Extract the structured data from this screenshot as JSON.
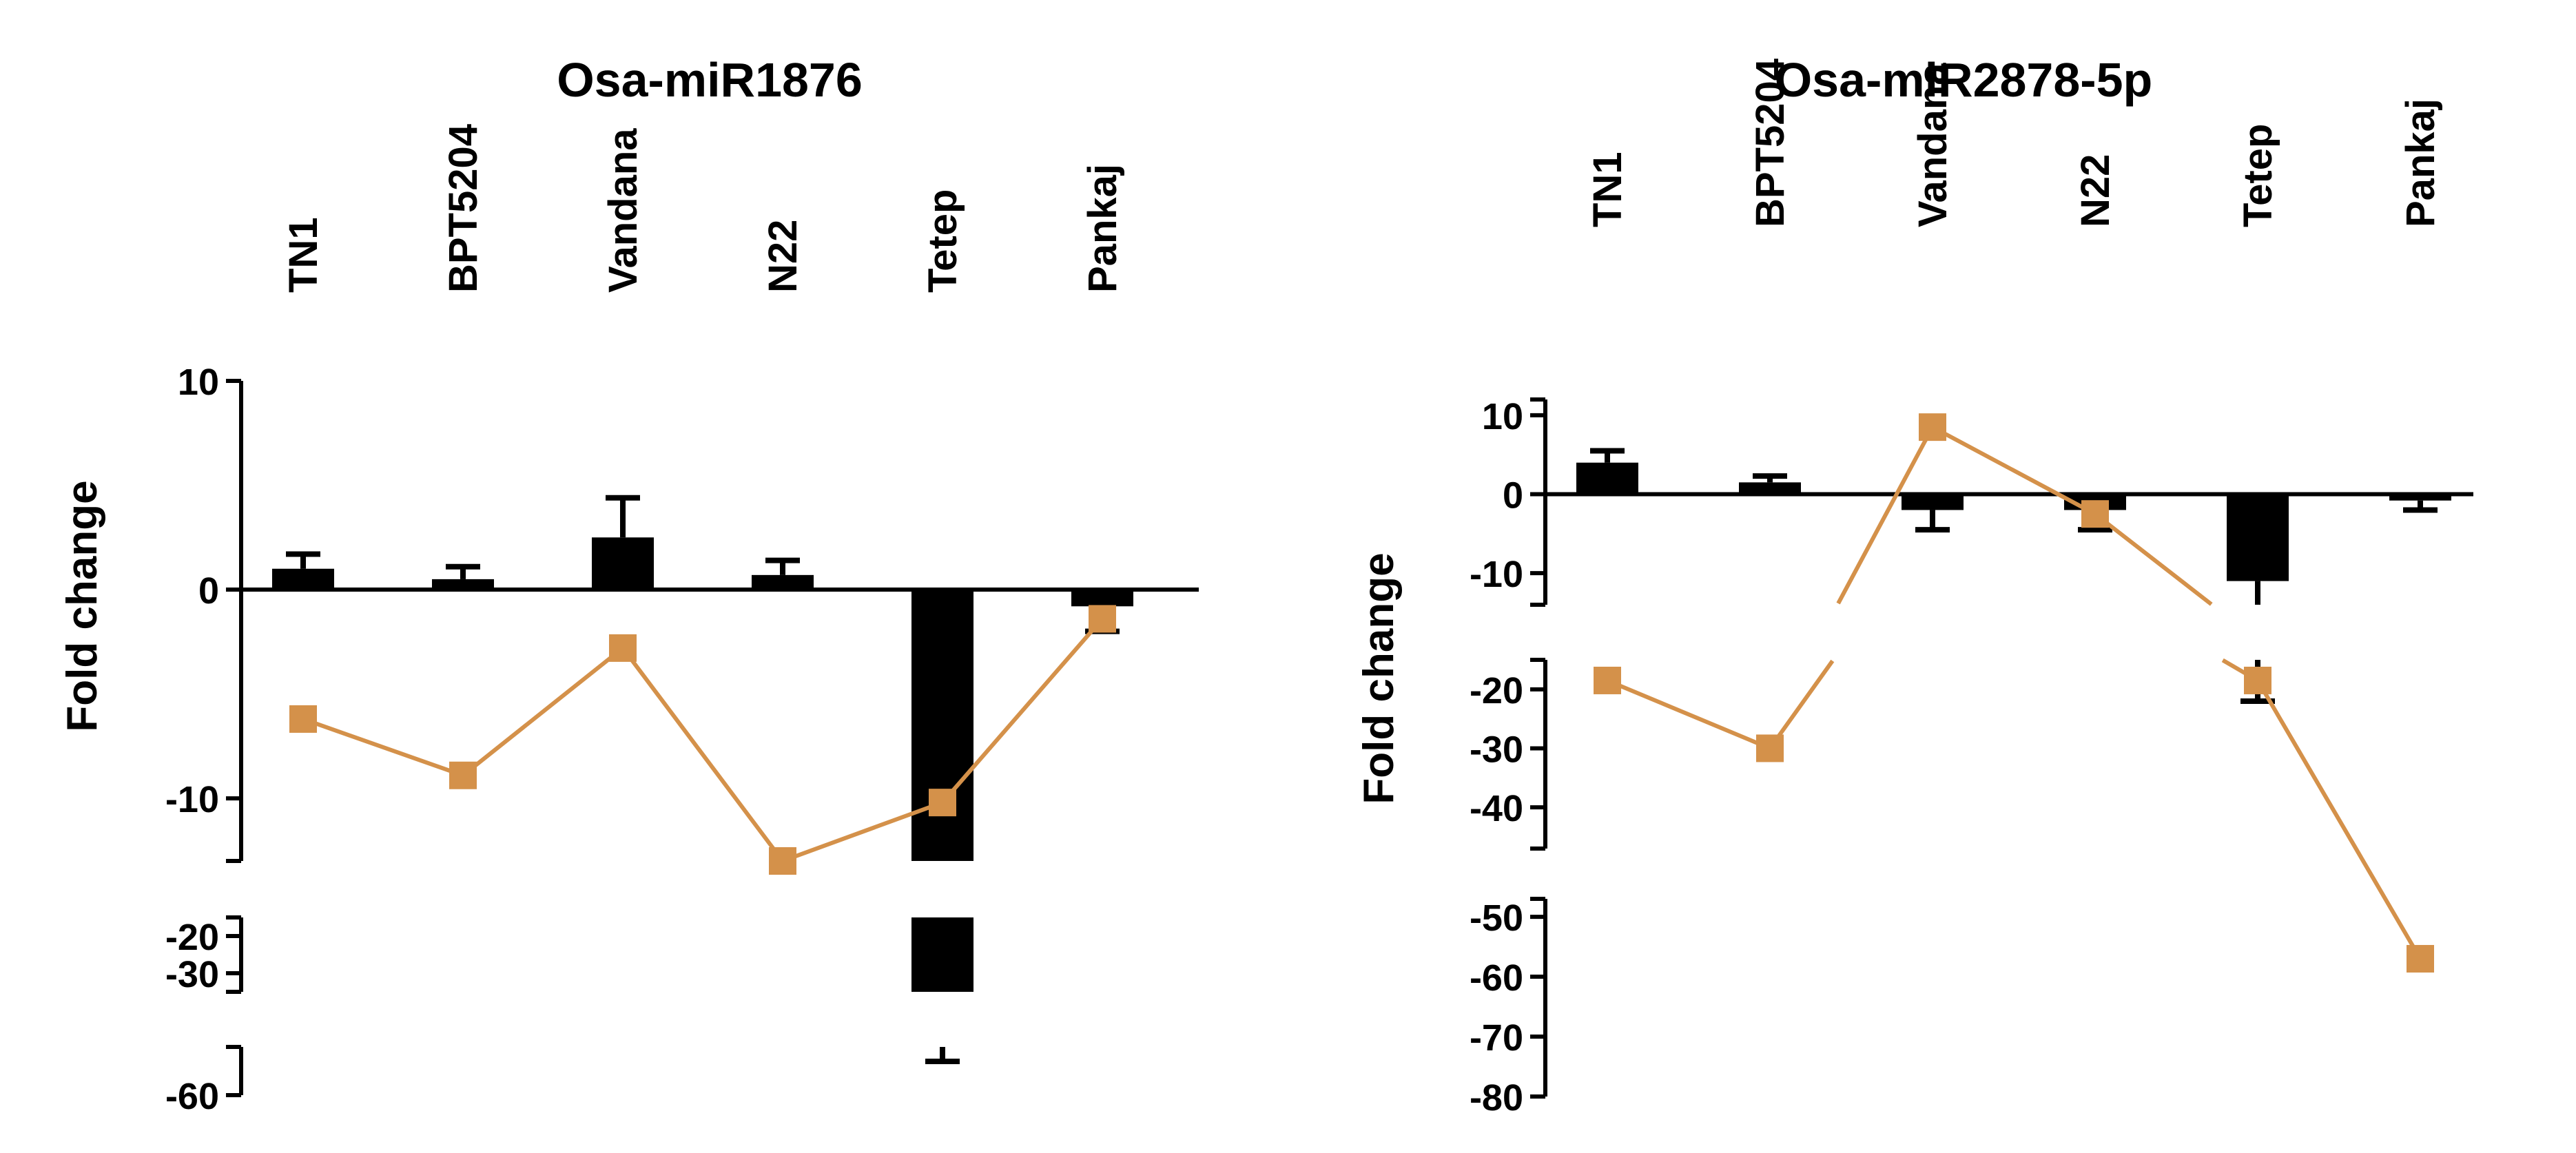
{
  "figure": {
    "background": "#ffffff",
    "bar_color": "#000000",
    "line_color": "#D4914A"
  },
  "chart_data": [
    {
      "type": "bar",
      "title": "Osa-miR1876",
      "ylabel": "Fold change",
      "xlabel": "",
      "categories": [
        "TN1",
        "BPT5204",
        "Vandana",
        "N22",
        "Tetep",
        "Pankaj"
      ],
      "series": [
        {
          "name": "bars",
          "kind": "bar",
          "values": [
            1.0,
            0.5,
            2.5,
            0.7,
            -42.0,
            -0.8
          ],
          "errors": [
            0.7,
            0.6,
            1.9,
            0.7,
            11.0,
            1.2
          ]
        },
        {
          "name": "line",
          "kind": "line",
          "values": [
            -6.2,
            -8.9,
            -2.8,
            -13.0,
            -10.2,
            -1.4
          ]
        }
      ],
      "y_segments": [
        {
          "range": [
            -13,
            10
          ],
          "ticks": [
            10,
            0,
            -10
          ],
          "tick_labels": [
            "10",
            "0",
            "-10"
          ]
        },
        {
          "range": [
            -35,
            -15
          ],
          "ticks": [
            -20,
            -30
          ],
          "tick_labels": [
            "-20",
            "-30"
          ]
        },
        {
          "range": [
            -60,
            -50
          ],
          "ticks": [
            -60
          ],
          "tick_labels": [
            "-60"
          ]
        }
      ],
      "category_axis_at": 0,
      "grid": false
    },
    {
      "type": "bar",
      "title": "Osa-miR2878-5p",
      "ylabel": "Fold change",
      "xlabel": "",
      "categories": [
        "TN1",
        "BPT5204",
        "Vandana",
        "N22",
        "Tetep",
        "Pankaj"
      ],
      "series": [
        {
          "name": "bars",
          "kind": "bar",
          "values": [
            4.0,
            1.5,
            -2.0,
            -2.0,
            -11.0,
            -0.8
          ],
          "errors": [
            1.5,
            0.8,
            2.5,
            2.5,
            11.0,
            1.2
          ]
        },
        {
          "name": "line",
          "kind": "line",
          "values": [
            -18.5,
            -30.0,
            8.5,
            -2.5,
            -18.5,
            -57.0
          ]
        }
      ],
      "y_segments": [
        {
          "range": [
            -14,
            12
          ],
          "ticks": [
            10,
            0,
            -10
          ],
          "tick_labels": [
            "10",
            "0",
            "-10"
          ]
        },
        {
          "range": [
            -47,
            -15
          ],
          "ticks": [
            -20,
            -30,
            -40
          ],
          "tick_labels": [
            "-20",
            "-30",
            "-40"
          ]
        },
        {
          "range": [
            -80,
            -47
          ],
          "ticks": [
            -50,
            -60,
            -70,
            -80
          ],
          "tick_labels": [
            "-50",
            "-60",
            "-70",
            "-80"
          ]
        }
      ],
      "category_axis_at": 0,
      "grid": false
    }
  ]
}
